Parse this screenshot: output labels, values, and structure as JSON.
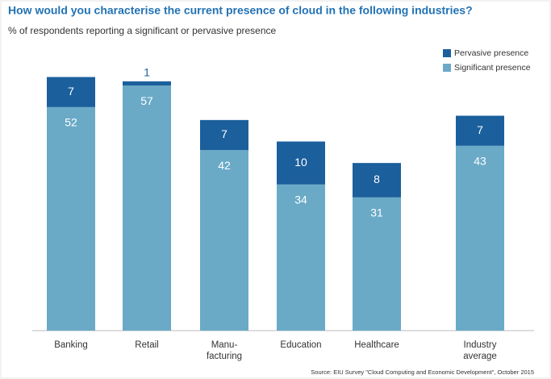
{
  "chart_data": {
    "type": "stacked_bar",
    "title": "How would you characterise the current presence of cloud in the following industries?",
    "subtitle": "% of respondents reporting a significant or pervasive presence",
    "categories": [
      "Banking",
      "Retail",
      "Manu-\nfacturing",
      "Education",
      "Healthcare",
      "Industry\naverage"
    ],
    "series": [
      {
        "name": "Significant presence",
        "color": "#6aaac7",
        "values": [
          52,
          57,
          42,
          34,
          31,
          43
        ]
      },
      {
        "name": "Pervasive presence",
        "color": "#1b5f9c",
        "values": [
          7,
          1,
          7,
          10,
          8,
          7
        ]
      }
    ],
    "source": "Source: EIU Survey \"Cloud Computing and Economic Development\", October 2015",
    "legend": "top-right"
  }
}
